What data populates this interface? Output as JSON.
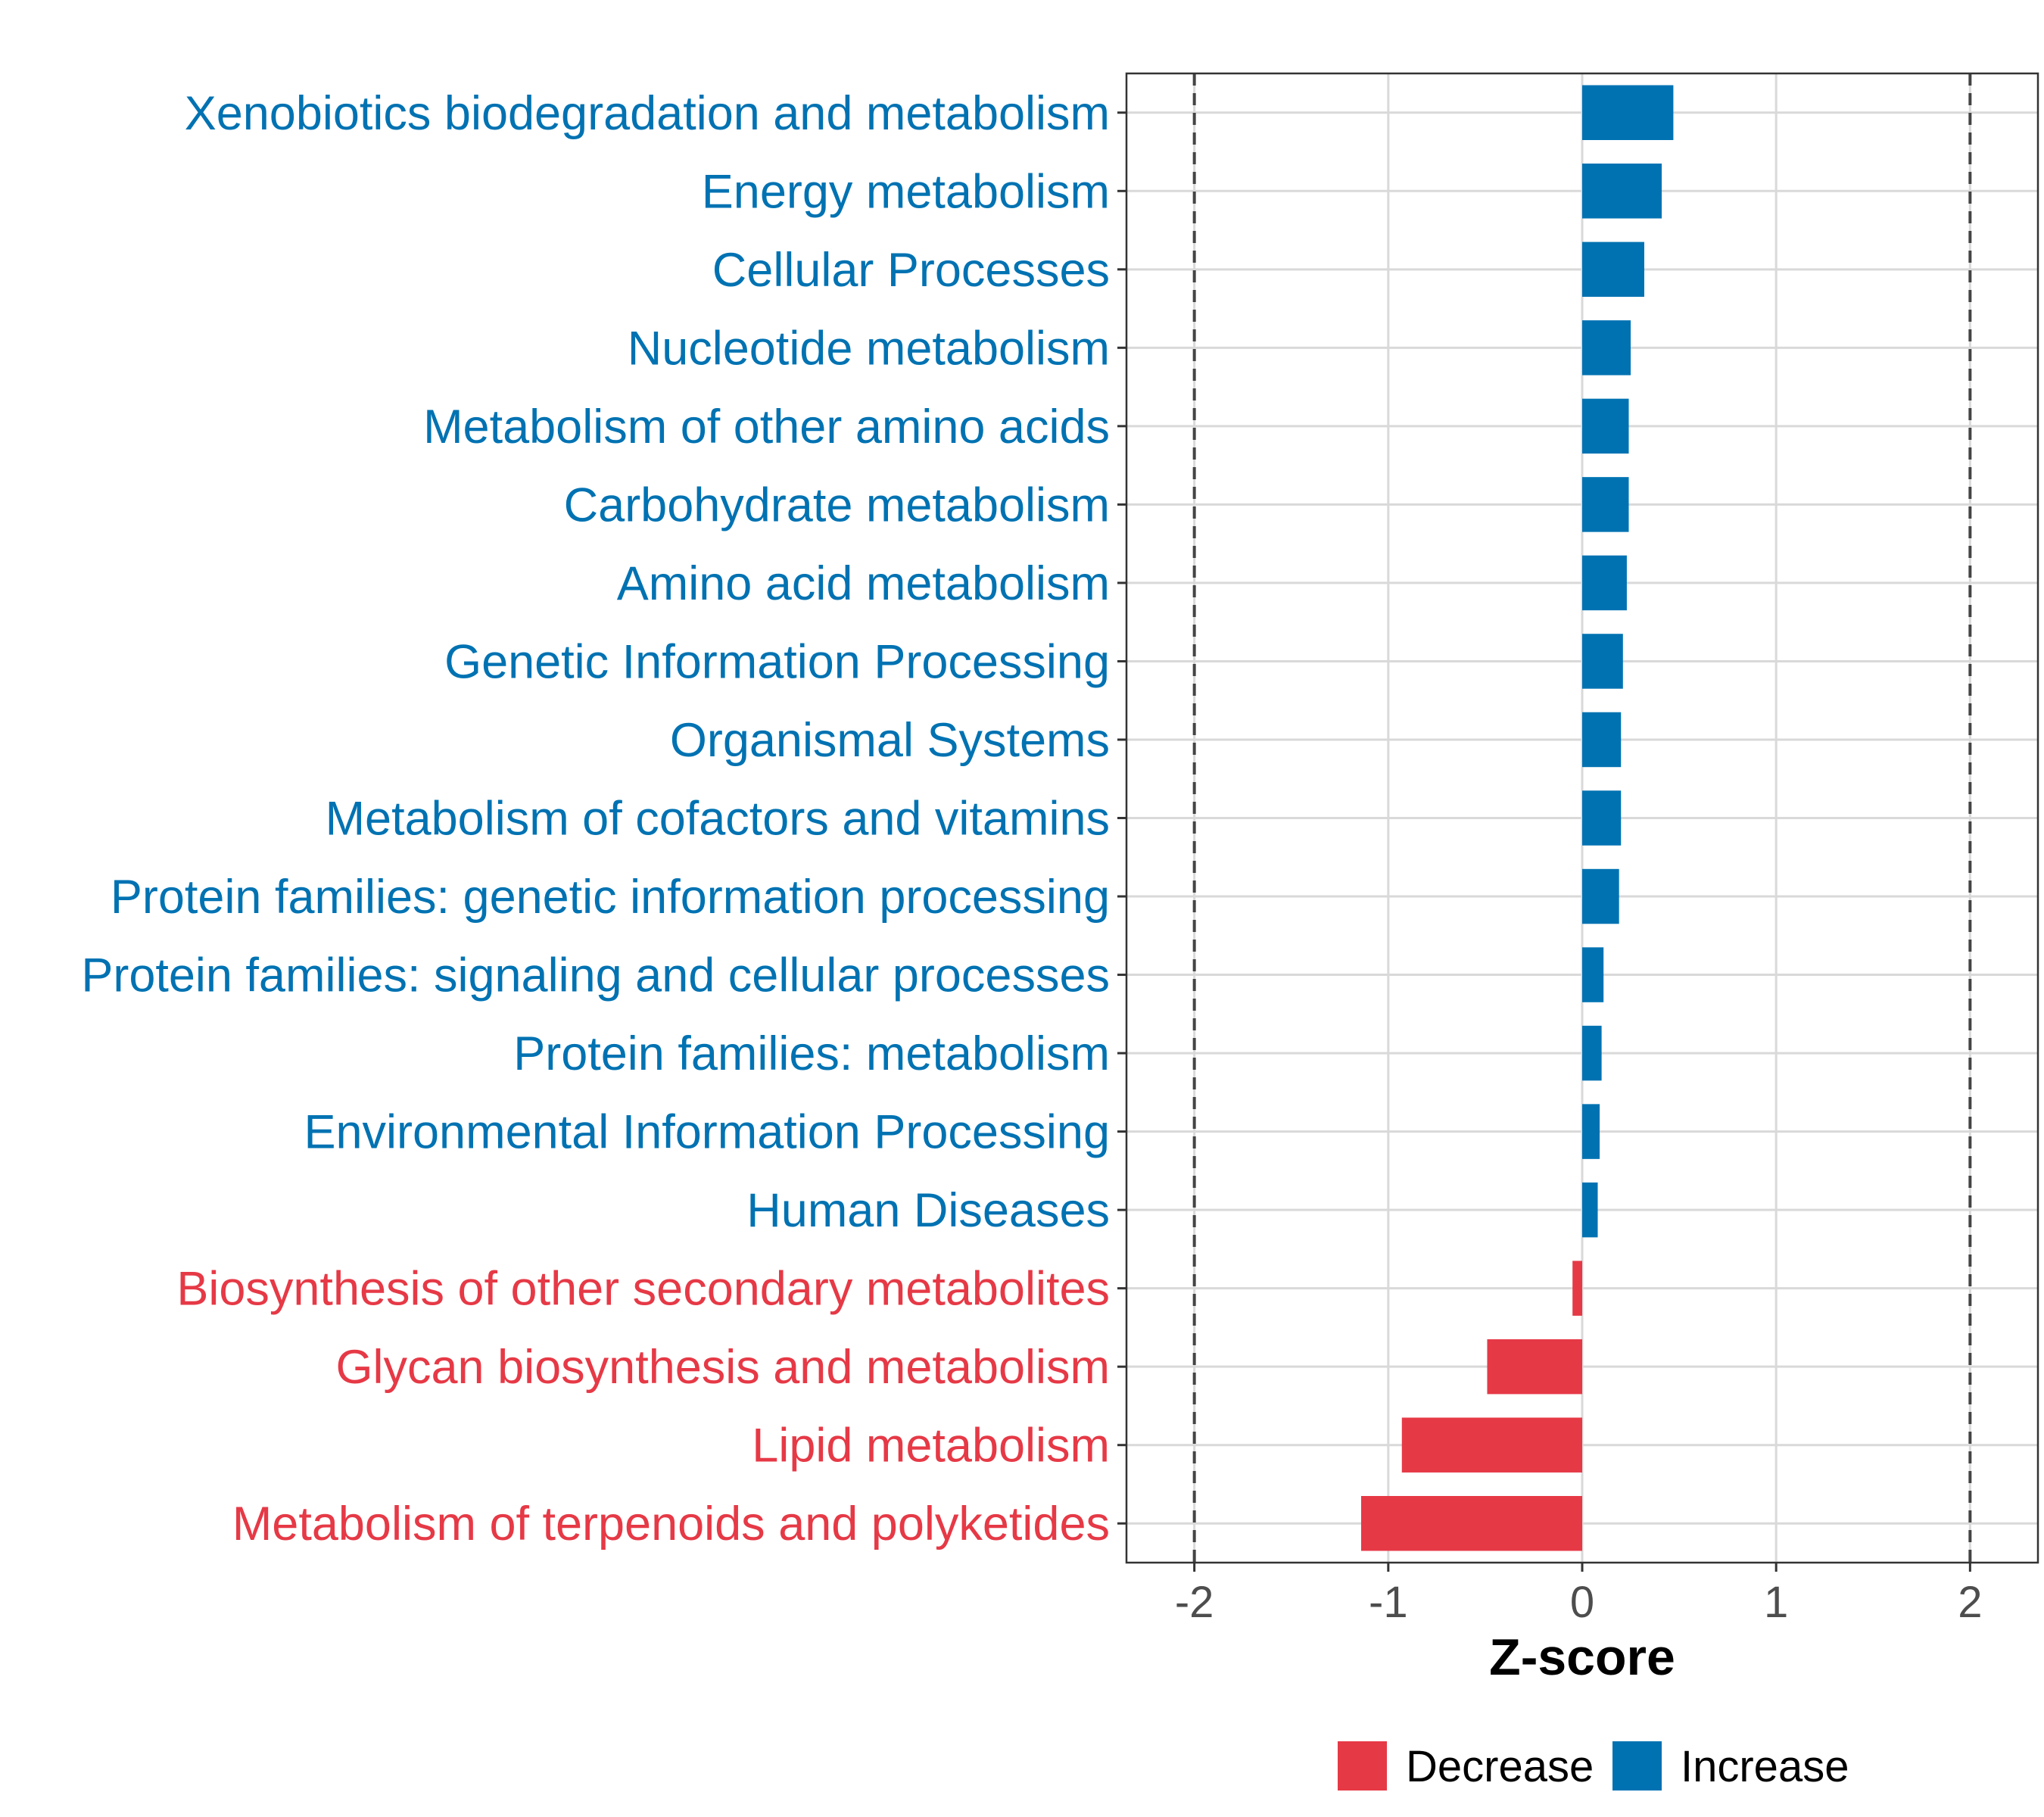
{
  "chart_data": {
    "type": "bar",
    "orientation": "horizontal",
    "title": "",
    "xlabel": "Z-score",
    "ylabel": "",
    "xlim": [
      -2.35,
      2.35
    ],
    "x_ticks": [
      -2,
      -1,
      0,
      1,
      2
    ],
    "x_tick_labels": [
      "-2",
      "-1",
      "0",
      "1",
      "2"
    ],
    "reference_lines": [
      -2,
      2
    ],
    "grid": true,
    "categories": [
      "Xenobiotics biodegradation and metabolism",
      "Energy metabolism",
      "Cellular Processes",
      "Nucleotide metabolism",
      "Metabolism of other amino acids",
      "Carbohydrate metabolism",
      "Amino acid metabolism",
      "Genetic Information Processing",
      "Organismal Systems",
      "Metabolism of cofactors and vitamins",
      "Protein families: genetic information processing",
      "Protein families: signaling and cellular processes",
      "Protein families: metabolism",
      "Environmental Information Processing",
      "Human Diseases",
      "Biosynthesis of other secondary metabolites",
      "Glycan biosynthesis and metabolism",
      "Lipid metabolism",
      "Metabolism of terpenoids and polyketides"
    ],
    "values": [
      0.47,
      0.41,
      0.32,
      0.25,
      0.24,
      0.24,
      0.23,
      0.21,
      0.2,
      0.2,
      0.19,
      0.11,
      0.1,
      0.09,
      0.08,
      -0.05,
      -0.49,
      -0.93,
      -1.14
    ],
    "groups": [
      "Increase",
      "Increase",
      "Increase",
      "Increase",
      "Increase",
      "Increase",
      "Increase",
      "Increase",
      "Increase",
      "Increase",
      "Increase",
      "Increase",
      "Increase",
      "Increase",
      "Increase",
      "Decrease",
      "Decrease",
      "Decrease",
      "Decrease"
    ],
    "legend": {
      "position": "bottom",
      "entries": [
        {
          "name": "Decrease",
          "color": "#E63946"
        },
        {
          "name": "Increase",
          "color": "#0072B2"
        }
      ]
    },
    "colors": {
      "Increase": "#0072B2",
      "Decrease": "#E63946"
    }
  }
}
